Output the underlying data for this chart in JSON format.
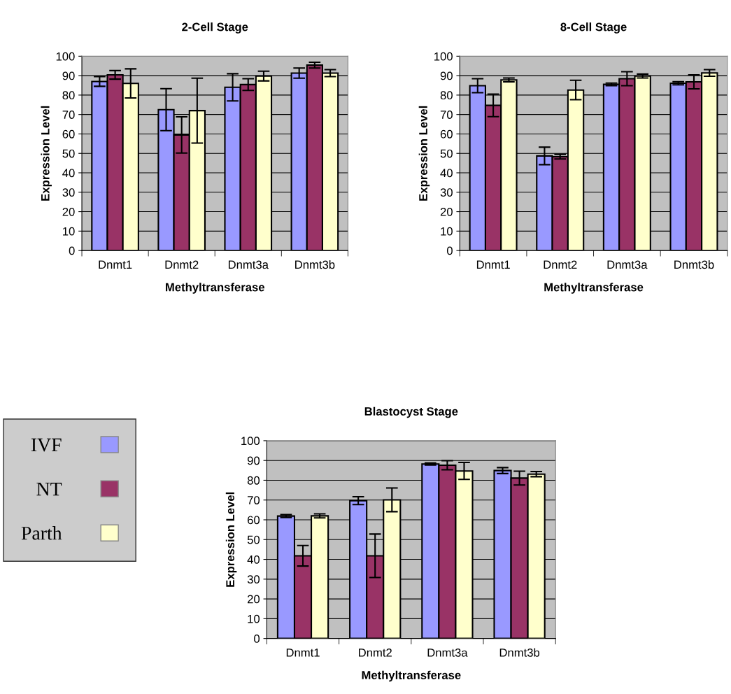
{
  "chart_data": [
    {
      "type": "bar",
      "title": "2-Cell Stage",
      "xlabel": "Methyltransferase",
      "ylabel": "Expression Level",
      "categories": [
        "Dnmt1",
        "Dnmt2",
        "Dnmt3a",
        "Dnmt3b"
      ],
      "ylim": [
        0,
        100
      ],
      "yticks": [
        0,
        10,
        20,
        30,
        40,
        50,
        60,
        70,
        80,
        90,
        100
      ],
      "grid": "y",
      "legend": false,
      "series": [
        {
          "color": "#9999ff",
          "values": [
            87,
            72.5,
            84,
            91.3
          ],
          "errors": [
            2.5,
            10.8,
            7,
            2.6
          ]
        },
        {
          "color": "#993366",
          "values": [
            90.4,
            59.5,
            85.4,
            95.4
          ],
          "errors": [
            2.2,
            9.3,
            3,
            1.5
          ]
        },
        {
          "color": "#ffffcc",
          "values": [
            86,
            72,
            89.8,
            91.3
          ],
          "errors": [
            7.5,
            16.7,
            2.5,
            1.8
          ]
        }
      ]
    },
    {
      "type": "bar",
      "title": "8-Cell Stage",
      "xlabel": "Methyltransferase",
      "ylabel": "Expression Level",
      "categories": [
        "Dnmt1",
        "Dnmt2",
        "Dnmt3a",
        "Dnmt3b"
      ],
      "ylim": [
        0,
        100
      ],
      "yticks": [
        0,
        10,
        20,
        30,
        40,
        50,
        60,
        70,
        80,
        90,
        100
      ],
      "grid": "y",
      "legend": false,
      "series": [
        {
          "color": "#9999ff",
          "values": [
            84.8,
            48.7,
            85.5,
            86.1
          ],
          "errors": [
            3.6,
            4.5,
            0.7,
            0.8
          ]
        },
        {
          "color": "#993366",
          "values": [
            74.7,
            48.3,
            88.4,
            86.8
          ],
          "errors": [
            5.8,
            1.2,
            3.6,
            3.6
          ]
        },
        {
          "color": "#ffffcc",
          "values": [
            87.8,
            82.6,
            89.8,
            91.4
          ],
          "errors": [
            1,
            5,
            1,
            1.7
          ]
        }
      ]
    },
    {
      "type": "bar",
      "title": "Blastocyst Stage",
      "xlabel": "Methyltransferase",
      "ylabel": "Expression Level",
      "categories": [
        "Dnmt1",
        "Dnmt2",
        "Dnmt3a",
        "Dnmt3b"
      ],
      "ylim": [
        0,
        100
      ],
      "yticks": [
        0,
        10,
        20,
        30,
        40,
        50,
        60,
        70,
        80,
        90,
        100
      ],
      "grid": "y",
      "legend": "left",
      "series": [
        {
          "name": "IVF",
          "color": "#9999ff",
          "values": [
            61.9,
            69.7,
            88.2,
            84.9
          ],
          "errors": [
            0.7,
            2,
            0.5,
            1.5
          ]
        },
        {
          "name": "NT",
          "color": "#993366",
          "values": [
            41.8,
            41.8,
            87.6,
            81.1
          ],
          "errors": [
            5.2,
            11,
            2.3,
            3.5
          ]
        },
        {
          "name": "Parth",
          "color": "#ffffcc",
          "values": [
            62,
            70.1,
            84.7,
            83.1
          ],
          "errors": [
            1,
            6,
            4.3,
            1.3
          ]
        }
      ]
    }
  ]
}
